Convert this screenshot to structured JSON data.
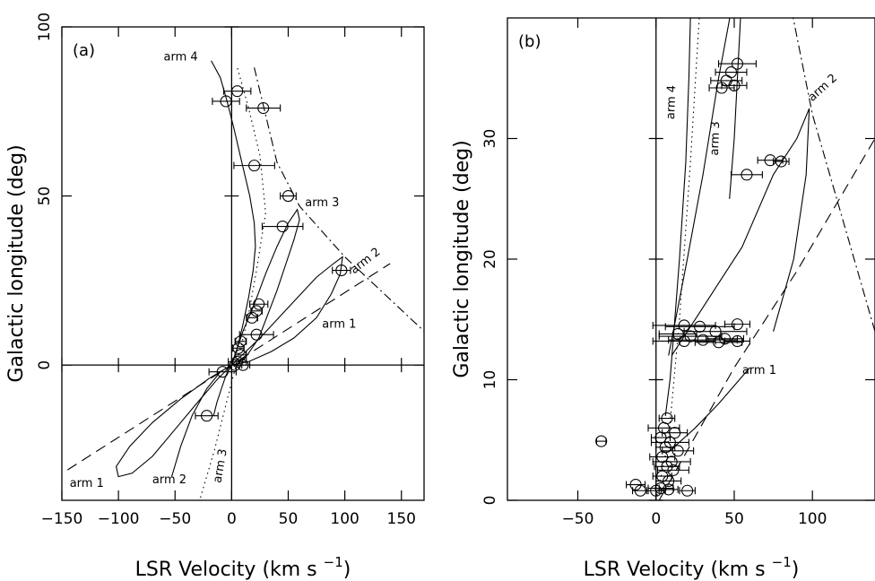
{
  "chart_data": [
    {
      "panel_label": "(a)",
      "type": "line",
      "xlabel_main": "LSR Velocity (km s",
      "xlabel_sup": "−1",
      "xlabel_close": ")",
      "ylabel": "Galactic longitude (deg)",
      "xlim": [
        -150,
        170
      ],
      "ylim": [
        -40,
        100
      ],
      "xticks": [
        -150,
        -100,
        -50,
        0,
        50,
        100,
        150
      ],
      "xtick_labels": [
        "−150",
        "−100",
        "−50",
        "0",
        "50",
        "100",
        "150"
      ],
      "yticks": [
        0,
        50,
        100
      ],
      "ytick_labels": [
        "0",
        "50",
        "100"
      ],
      "zero_lines": true,
      "curves": [
        {
          "name": "arm 4",
          "style": "solid",
          "points": [
            [
              -18,
              90
            ],
            [
              -10,
              85
            ],
            [
              -4,
              78
            ],
            [
              2,
              70
            ],
            [
              9,
              60
            ],
            [
              16,
              50
            ],
            [
              20,
              42
            ],
            [
              21,
              35
            ],
            [
              19,
              28
            ],
            [
              15,
              20
            ],
            [
              10,
              12
            ],
            [
              5,
              5
            ],
            [
              0,
              0
            ]
          ]
        },
        {
          "name": "arm 3",
          "style": "solid",
          "points": [
            [
              0,
              0
            ],
            [
              10,
              10
            ],
            [
              20,
              18
            ],
            [
              30,
              27
            ],
            [
              40,
              35
            ],
            [
              50,
              42
            ],
            [
              58,
              46
            ],
            [
              60,
              43
            ],
            [
              55,
              37
            ],
            [
              48,
              30
            ],
            [
              40,
              22
            ],
            [
              32,
              15
            ],
            [
              24,
              8
            ],
            [
              14,
              3
            ],
            [
              4,
              0
            ]
          ]
        },
        {
          "name": "arm 2",
          "style": "solid",
          "points": [
            [
              0,
              0
            ],
            [
              25,
              8
            ],
            [
              50,
              17
            ],
            [
              75,
              26
            ],
            [
              90,
              30
            ],
            [
              98,
              32
            ],
            [
              96,
              27
            ],
            [
              88,
              21
            ],
            [
              75,
              14
            ],
            [
              55,
              8
            ],
            [
              35,
              4
            ],
            [
              15,
              1
            ],
            [
              0,
              0
            ]
          ]
        },
        {
          "name": "arm 1",
          "style": "solid",
          "points": [
            [
              0,
              0
            ],
            [
              -20,
              -4
            ],
            [
              -45,
              -10
            ],
            [
              -70,
              -17
            ],
            [
              -90,
              -24
            ],
            [
              -102,
              -30
            ],
            [
              -100,
              -33
            ],
            [
              -88,
              -32
            ],
            [
              -70,
              -27
            ],
            [
              -50,
              -19
            ],
            [
              -30,
              -11
            ],
            [
              -12,
              -4
            ],
            [
              0,
              0
            ]
          ]
        },
        {
          "name": "arm 2",
          "style": "solid",
          "points": [
            [
              0,
              0
            ],
            [
              -10,
              -2
            ],
            [
              -22,
              -7
            ],
            [
              -35,
              -15
            ],
            [
              -45,
              -24
            ],
            [
              -53,
              -33
            ]
          ]
        },
        {
          "name": "arm 3",
          "style": "solid",
          "points": [
            [
              0,
              0
            ],
            [
              -5,
              -3
            ],
            [
              -9,
              -7
            ],
            [
              -13,
              -11
            ],
            [
              -16,
              -15
            ]
          ]
        },
        {
          "name": "",
          "style": "dashed",
          "points": [
            [
              -145,
              -31
            ],
            [
              140,
              30
            ]
          ]
        },
        {
          "name": "",
          "style": "dotted",
          "points": [
            [
              -30,
              -42
            ],
            [
              -15,
              -25
            ],
            [
              0,
              -5
            ],
            [
              8,
              5
            ],
            [
              15,
              15
            ],
            [
              22,
              28
            ],
            [
              30,
              45
            ],
            [
              25,
              62
            ],
            [
              15,
              76
            ],
            [
              5,
              88
            ]
          ]
        },
        {
          "name": "",
          "style": "dash-dot",
          "points": [
            [
              20,
              88
            ],
            [
              40,
              60
            ],
            [
              60,
              47
            ],
            [
              100,
              32
            ],
            [
              170,
              10
            ]
          ]
        }
      ],
      "arm_labels": [
        {
          "text": "arm 4",
          "x": -45,
          "y": 90,
          "rotate": 0
        },
        {
          "text": "arm 3",
          "x": 80,
          "y": 47,
          "rotate": 0
        },
        {
          "text": "arm 2",
          "x": 120,
          "y": 30,
          "rotate": -38
        },
        {
          "text": "arm 1",
          "x": 95,
          "y": 11,
          "rotate": 0
        },
        {
          "text": "arm 1",
          "x": -128,
          "y": -36,
          "rotate": 0
        },
        {
          "text": "arm 2",
          "x": -55,
          "y": -35,
          "rotate": 0
        },
        {
          "text": "arm 3",
          "x": -7,
          "y": -30,
          "rotate": -80
        }
      ],
      "points": [
        {
          "x": 5,
          "y": 81,
          "xerr": 12
        },
        {
          "x": -5,
          "y": 78,
          "xerr": 12
        },
        {
          "x": 28,
          "y": 76,
          "xerr": 15
        },
        {
          "x": 20,
          "y": 59,
          "xerr": 18
        },
        {
          "x": 50,
          "y": 50,
          "xerr": 7
        },
        {
          "x": 45,
          "y": 41,
          "xerr": 18
        },
        {
          "x": 97,
          "y": 28,
          "xerr": 8
        },
        {
          "x": 24,
          "y": 18,
          "xerr": 8
        },
        {
          "x": 22,
          "y": 16,
          "xerr": 5
        },
        {
          "x": 18,
          "y": 14,
          "xerr": 5
        },
        {
          "x": 22,
          "y": 9,
          "xerr": 15
        },
        {
          "x": 8,
          "y": 7,
          "xerr": 5
        },
        {
          "x": 6,
          "y": 5,
          "xerr": 5
        },
        {
          "x": 8,
          "y": 3,
          "xerr": 5
        },
        {
          "x": 5,
          "y": 1,
          "xerr": 8
        },
        {
          "x": 3,
          "y": 0,
          "xerr": 6
        },
        {
          "x": 10,
          "y": 0,
          "xerr": 6
        },
        {
          "x": -8,
          "y": -2,
          "xerr": 12
        },
        {
          "x": -22,
          "y": -15,
          "xerr": 10
        }
      ]
    },
    {
      "panel_label": "(b)",
      "type": "line",
      "xlabel_main": "LSR Velocity (km s",
      "xlabel_sup": "−1",
      "xlabel_close": ")",
      "ylabel": "Galactic longitude (deg)",
      "xlim": [
        -95,
        140
      ],
      "ylim": [
        0,
        40
      ],
      "xticks": [
        -50,
        0,
        50,
        100
      ],
      "xtick_labels": [
        "−50",
        "0",
        "50",
        "100"
      ],
      "yticks": [
        0,
        10,
        20,
        30
      ],
      "ytick_labels": [
        "0",
        "10",
        "20",
        "30"
      ],
      "zero_lines": false,
      "curves": [
        {
          "name": "arm 4",
          "style": "solid",
          "points": [
            [
              22,
              40
            ],
            [
              21,
              35
            ],
            [
              19,
              28
            ],
            [
              15,
              20
            ],
            [
              12,
              15
            ],
            [
              9,
              10
            ],
            [
              6,
              7
            ]
          ]
        },
        {
          "name": "arm 3",
          "style": "solid",
          "points": [
            [
              8,
              12
            ],
            [
              14,
              16
            ],
            [
              20,
              20
            ],
            [
              30,
              27
            ],
            [
              40,
              35
            ],
            [
              50,
              42
            ],
            [
              54,
              45
            ],
            [
              54,
              40
            ],
            [
              52,
              35
            ],
            [
              50,
              30
            ],
            [
              47,
              25
            ]
          ]
        },
        {
          "name": "arm 2",
          "style": "solid",
          "points": [
            [
              10,
              12
            ],
            [
              25,
              15
            ],
            [
              40,
              18
            ],
            [
              55,
              21
            ],
            [
              75,
              27
            ],
            [
              90,
              30
            ],
            [
              98,
              32.5
            ],
            [
              96,
              27
            ],
            [
              88,
              20
            ],
            [
              75,
              14
            ]
          ]
        },
        {
          "name": "arm 1",
          "style": "solid",
          "points": [
            [
              8,
              4
            ],
            [
              25,
              6
            ],
            [
              40,
              8
            ],
            [
              60,
              11
            ]
          ]
        },
        {
          "name": "",
          "style": "dashed",
          "points": [
            [
              2,
              0
            ],
            [
              50,
              11
            ],
            [
              90,
              19
            ],
            [
              140,
              30
            ]
          ]
        },
        {
          "name": "",
          "style": "dotted",
          "points": [
            [
              0,
              0
            ],
            [
              8,
              5
            ],
            [
              15,
              15
            ],
            [
              22,
              28
            ],
            [
              30,
              45
            ]
          ]
        },
        {
          "name": "",
          "style": "dash-dot",
          "points": [
            [
              80,
              45
            ],
            [
              100,
              32
            ],
            [
              140,
              14
            ]
          ]
        }
      ],
      "arm_labels": [
        {
          "text": "arm 4",
          "x": 12,
          "y": 33,
          "rotate": -88
        },
        {
          "text": "arm 3",
          "x": 40,
          "y": 30,
          "rotate": -88
        },
        {
          "text": "arm 2",
          "x": 108,
          "y": 34,
          "rotate": -42
        },
        {
          "text": "arm 1",
          "x": 66,
          "y": 10.5,
          "rotate": 0
        }
      ],
      "points": [
        {
          "x": 52,
          "y": 36.2,
          "xerr": 12
        },
        {
          "x": 48,
          "y": 35.5,
          "xerr": 10
        },
        {
          "x": 45,
          "y": 34.8,
          "xerr": 10
        },
        {
          "x": 50,
          "y": 34.4,
          "xerr": 8
        },
        {
          "x": 42,
          "y": 34.2,
          "xerr": 8
        },
        {
          "x": 73,
          "y": 28.2,
          "xerr": 8
        },
        {
          "x": 80,
          "y": 28.1,
          "xerr": 5
        },
        {
          "x": 58,
          "y": 27,
          "xerr": 10
        },
        {
          "x": 18,
          "y": 14.5,
          "xerr": 20
        },
        {
          "x": 28,
          "y": 14.4,
          "xerr": 22
        },
        {
          "x": 52,
          "y": 14.6,
          "xerr": 8
        },
        {
          "x": 38,
          "y": 14.0,
          "xerr": 20
        },
        {
          "x": 14,
          "y": 13.8,
          "xerr": 12
        },
        {
          "x": 22,
          "y": 13.6,
          "xerr": 20
        },
        {
          "x": 44,
          "y": 13.4,
          "xerr": 12
        },
        {
          "x": 30,
          "y": 13.3,
          "xerr": 22
        },
        {
          "x": 18,
          "y": 13.2,
          "xerr": 20
        },
        {
          "x": 40,
          "y": 13.1,
          "xerr": 15
        },
        {
          "x": 52,
          "y": 13.2,
          "xerr": 8
        },
        {
          "x": -35,
          "y": 4.9,
          "xerr": 3
        },
        {
          "x": 7,
          "y": 6.8,
          "xerr": 5
        },
        {
          "x": 5,
          "y": 6.0,
          "xerr": 10
        },
        {
          "x": 12,
          "y": 5.6,
          "xerr": 8
        },
        {
          "x": 3,
          "y": 5.2,
          "xerr": 6
        },
        {
          "x": 9,
          "y": 4.8,
          "xerr": 12
        },
        {
          "x": 6,
          "y": 4.4,
          "xerr": 6
        },
        {
          "x": 14,
          "y": 4.1,
          "xerr": 10
        },
        {
          "x": 4,
          "y": 3.6,
          "xerr": 8
        },
        {
          "x": 10,
          "y": 3.2,
          "xerr": 12
        },
        {
          "x": 7,
          "y": 2.8,
          "xerr": 8
        },
        {
          "x": 11,
          "y": 2.5,
          "xerr": 10
        },
        {
          "x": 4,
          "y": 2.0,
          "xerr": 6
        },
        {
          "x": 8,
          "y": 1.6,
          "xerr": 8
        },
        {
          "x": -13,
          "y": 1.3,
          "xerr": 6
        },
        {
          "x": 3,
          "y": 1.0,
          "xerr": 8
        },
        {
          "x": 8,
          "y": 0.9,
          "xerr": 6
        },
        {
          "x": -10,
          "y": 0.8,
          "xerr": 5
        },
        {
          "x": 0,
          "y": 0.8,
          "xerr": 6
        },
        {
          "x": 20,
          "y": 0.8,
          "xerr": 5
        }
      ]
    }
  ]
}
